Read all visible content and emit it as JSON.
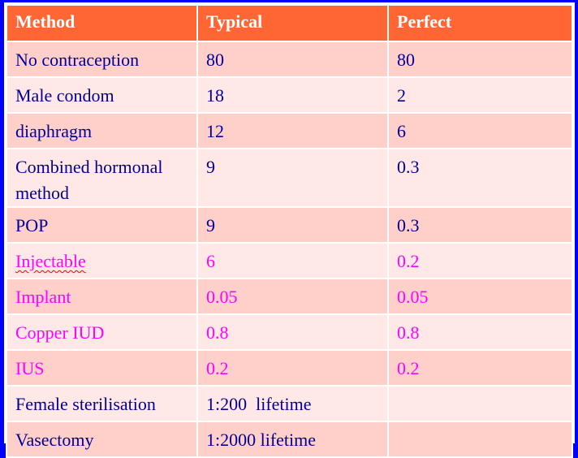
{
  "colors": {
    "border": "#0000ff",
    "header_bg": "#ff6633",
    "row_odd": "#ffd0ca",
    "row_even": "#ffe8e6",
    "text_default": "#000099",
    "text_highlight": "#ff00ff"
  },
  "table": {
    "headers": [
      "Method",
      "Typical",
      "Perfect"
    ],
    "rows": [
      {
        "method": "No contraception",
        "typical": "80",
        "perfect": "80",
        "highlight": false
      },
      {
        "method": "Male condom",
        "typical": "18",
        "perfect": "2",
        "highlight": false
      },
      {
        "method": "diaphragm",
        "typical": "12",
        "perfect": "6",
        "highlight": false
      },
      {
        "method": "Combined hormonal method",
        "typical": "9",
        "perfect": "0.3",
        "highlight": false
      },
      {
        "method": "POP",
        "typical": "9",
        "perfect": "0.3",
        "highlight": false
      },
      {
        "method": "Injectable",
        "typical": "6",
        "perfect": "0.2",
        "highlight": true
      },
      {
        "method": "Implant",
        "typical": "0.05",
        "perfect": "0.05",
        "highlight": true
      },
      {
        "method": "Copper IUD",
        "typical": "0.8",
        "perfect": "0.8",
        "highlight": true
      },
      {
        "method": "IUS",
        "typical": "0.2",
        "perfect": "0.2",
        "highlight": true
      },
      {
        "method": "Female sterilisation",
        "typical": "1:200  lifetime",
        "perfect": "",
        "highlight": false
      },
      {
        "method": "Vasectomy",
        "typical": "1:2000 lifetime",
        "perfect": "",
        "highlight": false
      }
    ]
  }
}
